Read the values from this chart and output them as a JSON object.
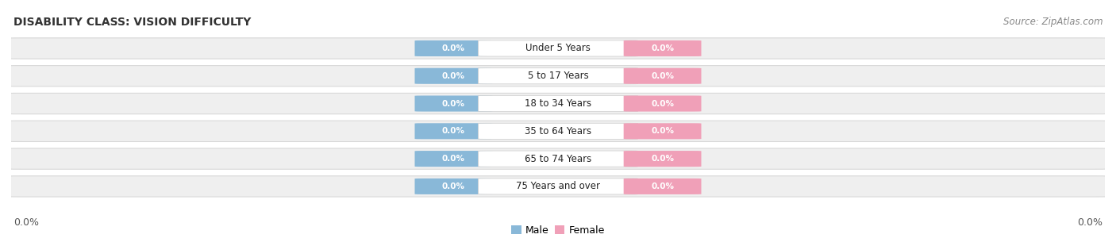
{
  "title": "DISABILITY CLASS: VISION DIFFICULTY",
  "source": "Source: ZipAtlas.com",
  "categories": [
    "Under 5 Years",
    "5 to 17 Years",
    "18 to 34 Years",
    "35 to 64 Years",
    "65 to 74 Years",
    "75 Years and over"
  ],
  "male_values": [
    0.0,
    0.0,
    0.0,
    0.0,
    0.0,
    0.0
  ],
  "female_values": [
    0.0,
    0.0,
    0.0,
    0.0,
    0.0,
    0.0
  ],
  "male_color": "#89b8d8",
  "female_color": "#f0a0b8",
  "bar_bg_color": "#efefef",
  "bar_bg_edge_color": "#d8d8d8",
  "left_label": "0.0%",
  "right_label": "0.0%",
  "legend_male": "Male",
  "legend_female": "Female",
  "title_fontsize": 10,
  "source_fontsize": 8.5,
  "label_fontsize": 9,
  "value_fontsize": 7.5,
  "cat_fontsize": 8.5,
  "tick_fontsize": 9,
  "background_color": "#ffffff"
}
